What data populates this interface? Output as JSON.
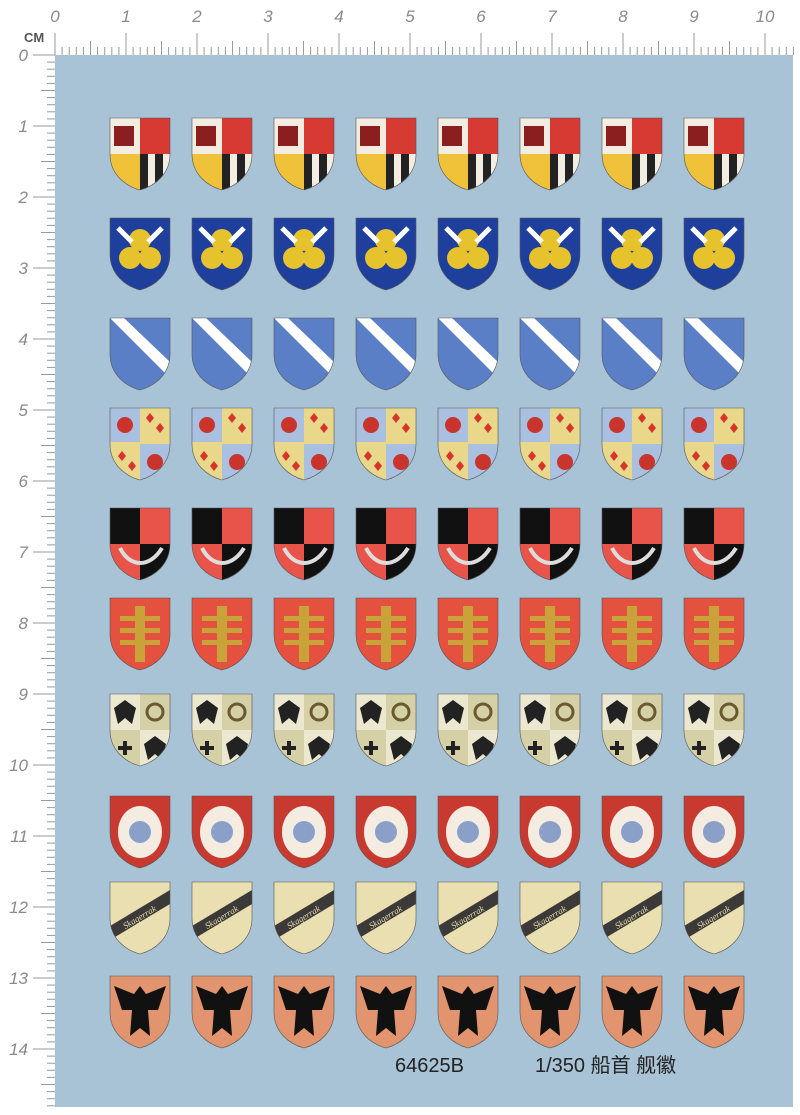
{
  "ruler": {
    "unit": "CM",
    "top": [
      "0",
      "1",
      "2",
      "3",
      "4",
      "5",
      "6",
      "7",
      "8",
      "9",
      "10"
    ],
    "left": [
      "0",
      "1",
      "2",
      "3",
      "4",
      "5",
      "6",
      "7",
      "8",
      "9",
      "10",
      "11",
      "12",
      "13",
      "14"
    ]
  },
  "shield_band_text": "Skagerrak",
  "footer": {
    "code": "64625B",
    "scale": "1/350 船首 舰徽"
  }
}
